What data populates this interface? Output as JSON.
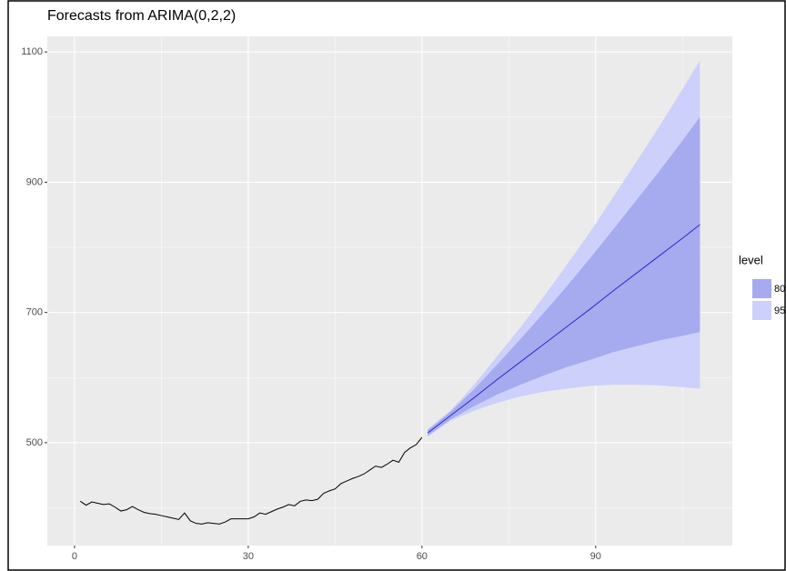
{
  "chart_data": {
    "type": "forecast",
    "title": "Forecasts from ARIMA(0,2,2)",
    "xlim": [
      -4.7,
      113.6
    ],
    "ylim": [
      342,
      1124
    ],
    "xticks": [
      0,
      30,
      60,
      90
    ],
    "yticks": [
      500,
      700,
      900,
      1100
    ],
    "x_minor": [
      15,
      45,
      75,
      105
    ],
    "y_minor": [
      400,
      600,
      800,
      1000
    ],
    "grid": true,
    "series": [
      {
        "color": "#000000",
        "x": [
          1,
          2,
          3,
          4,
          5,
          6,
          7,
          8,
          9,
          10,
          11,
          12,
          13,
          14,
          15,
          16,
          17,
          18,
          19,
          20,
          21,
          22,
          23,
          24,
          25,
          26,
          27,
          28,
          29,
          30,
          31,
          32,
          33,
          34,
          35,
          36,
          37,
          38,
          39,
          40,
          41,
          42,
          43,
          44,
          45,
          46,
          47,
          48,
          49,
          50,
          51,
          52,
          53,
          54,
          55,
          56,
          57,
          58,
          59,
          60
        ],
        "values": [
          410,
          404,
          409,
          407,
          405,
          406,
          401,
          395,
          397,
          402,
          397,
          393,
          391,
          390,
          388,
          386,
          384,
          382,
          392,
          380,
          376,
          375,
          377,
          376,
          375,
          378,
          383,
          383,
          383,
          383,
          386,
          392,
          390,
          394,
          398,
          401,
          405,
          403,
          410,
          412,
          411,
          413,
          422,
          426,
          429,
          437,
          441,
          445,
          448,
          452,
          458,
          464,
          462,
          467,
          473,
          470,
          485,
          492,
          497,
          508
        ]
      },
      {
        "color": "#2a2ac8",
        "x": [
          61,
          65,
          69,
          73,
          77,
          81,
          85,
          89,
          93,
          97,
          101,
          105,
          108
        ],
        "values": [
          515,
          542,
          569,
          597,
          624,
          651,
          678,
          705,
          733,
          760,
          787,
          814,
          835
        ]
      }
    ],
    "legend_title": "level",
    "bands": [
      {
        "name": "95",
        "color": "#cdd0fa",
        "x": [
          61,
          65,
          69,
          73,
          77,
          81,
          85,
          89,
          93,
          97,
          101,
          105,
          108
        ],
        "lower": [
          509,
          534,
          549,
          561,
          571,
          578,
          583,
          587,
          589,
          589,
          588,
          585,
          583
        ],
        "upper": [
          521,
          550,
          589,
          633,
          677,
          724,
          773,
          823,
          877,
          931,
          986,
          1043,
          1087
        ]
      },
      {
        "name": "80",
        "color": "#a6aaef",
        "x": [
          61,
          65,
          69,
          73,
          77,
          81,
          85,
          89,
          93,
          97,
          101,
          105,
          108
        ],
        "lower": [
          511,
          536,
          556,
          574,
          589,
          603,
          616,
          627,
          639,
          648,
          657,
          664,
          670
        ],
        "upper": [
          519,
          548,
          582,
          620,
          659,
          699,
          740,
          783,
          827,
          872,
          917,
          964,
          1000
        ]
      }
    ]
  }
}
